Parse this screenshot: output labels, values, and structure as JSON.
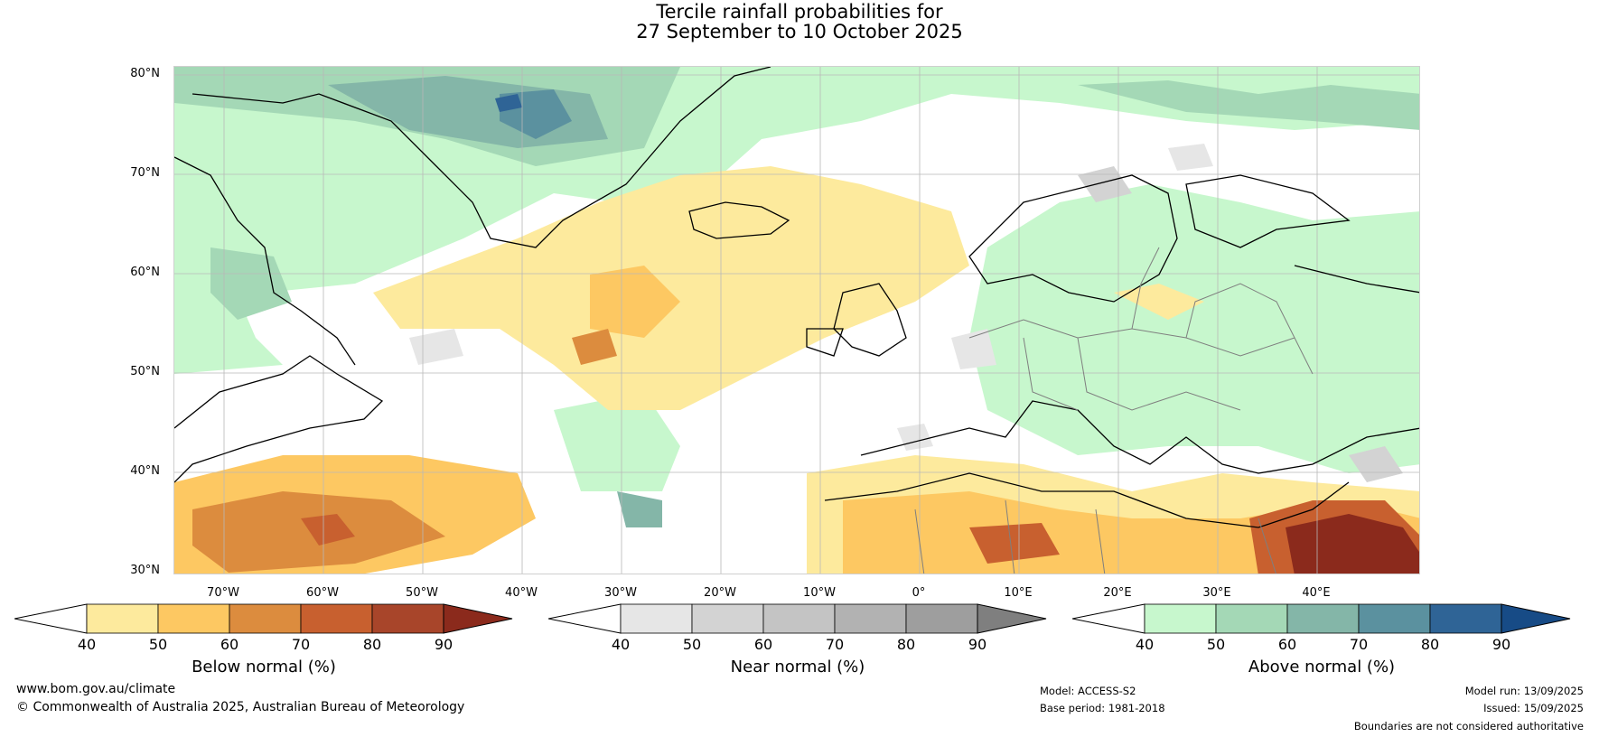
{
  "title": {
    "line1": "Tercile rainfall probabilities for",
    "line2": "27 September to 10 October 2025"
  },
  "axes": {
    "latitude_labels": [
      "80°N",
      "70°N",
      "60°N",
      "50°N",
      "40°N",
      "30°N"
    ],
    "longitude_labels": [
      "70°W",
      "60°W",
      "50°W",
      "40°W",
      "30°W",
      "20°W",
      "10°W",
      "0°",
      "10°E",
      "20°E",
      "30°E",
      "40°E"
    ],
    "latitude_range": [
      30,
      81
    ],
    "longitude_range": [
      -78,
      47
    ]
  },
  "legends": {
    "below_normal": {
      "label": "Below normal (%)",
      "ticks": [
        "40",
        "50",
        "60",
        "70",
        "80",
        "90"
      ],
      "colors": [
        "#ffffff",
        "#fdea9d",
        "#fdc862",
        "#dc8c3e",
        "#c8602f",
        "#a8452a",
        "#8b2a1c"
      ]
    },
    "near_normal": {
      "label": "Near normal (%)",
      "ticks": [
        "40",
        "50",
        "60",
        "70",
        "80",
        "90"
      ],
      "colors": [
        "#ffffff",
        "#e6e6e6",
        "#d3d3d3",
        "#c4c4c4",
        "#b2b2b2",
        "#9e9e9e",
        "#7f7f7f"
      ]
    },
    "above_normal": {
      "label": "Above normal (%)",
      "ticks": [
        "40",
        "50",
        "60",
        "70",
        "80",
        "90"
      ],
      "colors": [
        "#ffffff",
        "#c7f7cd",
        "#a4d8b6",
        "#84b6a8",
        "#5b919f",
        "#2f6496",
        "#174b86"
      ]
    }
  },
  "footer": {
    "website": "www.bom.gov.au/climate",
    "copyright": "© Commonwealth of Australia 2025, Australian Bureau of Meteorology",
    "model": "Model: ACCESS-S2",
    "base_period": "Base period: 1981-2018",
    "model_run": "Model run: 13/09/2025",
    "issued": "Issued: 15/09/2025",
    "disclaimer": "Boundaries are not considered authoritative"
  }
}
